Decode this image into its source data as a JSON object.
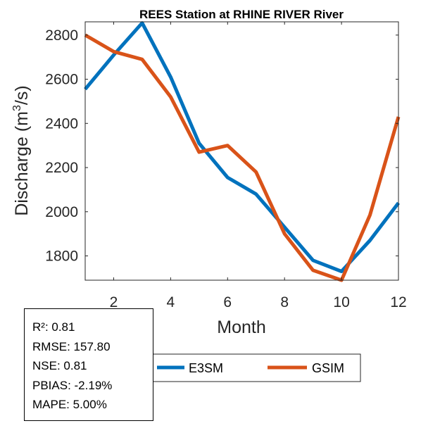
{
  "chart_data": {
    "type": "line",
    "title": "REES  Station at  RHINE RIVER  River",
    "xlabel": "Month",
    "ylabel_main": "Discharge (m",
    "ylabel_sup": "3",
    "ylabel_end": "/s)",
    "xlim": [
      1,
      12
    ],
    "ylim": [
      1690,
      2860
    ],
    "xticks": [
      2,
      4,
      6,
      8,
      10,
      12
    ],
    "yticks": [
      1800,
      2000,
      2200,
      2400,
      2600,
      2800
    ],
    "x": [
      1,
      2,
      3,
      4,
      5,
      6,
      7,
      8,
      9,
      10,
      11,
      12
    ],
    "series": [
      {
        "name": "E3SM",
        "color": "#0072BD",
        "values": [
          2555,
          2710,
          2855,
          2610,
          2310,
          2155,
          2080,
          1930,
          1780,
          1730,
          1870,
          2040
        ]
      },
      {
        "name": "GSIM",
        "color": "#D95319",
        "values": [
          2800,
          2725,
          2690,
          2520,
          2270,
          2300,
          2180,
          1900,
          1735,
          1690,
          1985,
          2430
        ]
      }
    ],
    "legend_placement": "bottom",
    "grid": false
  },
  "stats": [
    "R²: 0.81",
    "RMSE: 157.80",
    "NSE: 0.81",
    "PBIAS: -2.19%",
    "MAPE: 5.00%"
  ]
}
